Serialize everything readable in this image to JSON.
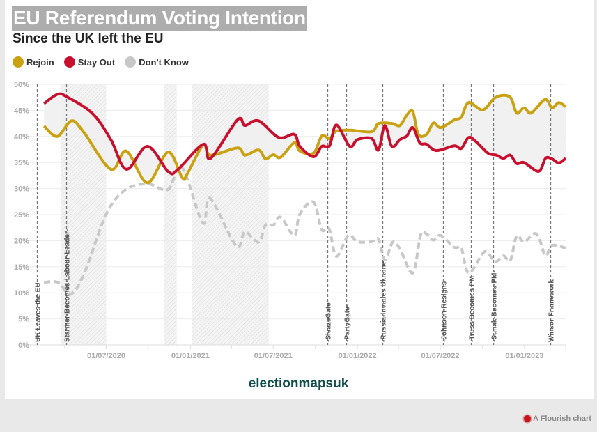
{
  "header": {
    "title": "EU Referendum Voting Intention",
    "subtitle": "Since the UK left the EU"
  },
  "legend": [
    {
      "label": "Rejoin",
      "color": "#c9a111"
    },
    {
      "label": "Stay Out",
      "color": "#c8102e"
    },
    {
      "label": "Don't Know",
      "color": "#c8c8c8"
    }
  ],
  "footer": {
    "credit": "electionmapsuk",
    "flourish": "A Flourish chart"
  },
  "chart_data": {
    "type": "line",
    "title": "EU Referendum Voting Intention",
    "subtitle": "Since the UK left the EU",
    "xlabel": "",
    "ylabel": "",
    "xlim": [
      "2020-01-30",
      "2023-04-01"
    ],
    "ylim": [
      0,
      50
    ],
    "y_ticks": [
      "0%",
      "5%",
      "10%",
      "15%",
      "20%",
      "25%",
      "30%",
      "35%",
      "40%",
      "45%",
      "50%"
    ],
    "x_ticks": [
      {
        "date": "2020-07-01",
        "label": "01/07/2020"
      },
      {
        "date": "2021-01-01",
        "label": "01/01/2021"
      },
      {
        "date": "2021-07-01",
        "label": "01/07/2021"
      },
      {
        "date": "2022-01-01",
        "label": "01/01/2022"
      },
      {
        "date": "2022-07-01",
        "label": "01/07/2022"
      },
      {
        "date": "2023-01-01",
        "label": "01/01/2023"
      }
    ],
    "x_minor_ticks": [
      "2020-04-01",
      "2020-10-01",
      "2021-04-01",
      "2021-10-01",
      "2022-04-01",
      "2022-10-01",
      "2023-04-01"
    ],
    "grid": true,
    "legend_position": "top-left",
    "shaded_periods": [
      [
        "2020-03-23",
        "2020-07-01"
      ],
      [
        "2020-11-05",
        "2020-12-02"
      ],
      [
        "2021-01-05",
        "2021-06-21"
      ]
    ],
    "events": [
      {
        "date": "2020-01-31",
        "label": "UK Leaves the EU"
      },
      {
        "date": "2020-04-04",
        "label": "Starmer-Becomes-Labour-Leader-"
      },
      {
        "date": "2021-10-28",
        "label": "-SleazeGate"
      },
      {
        "date": "2021-12-08",
        "label": "-PartyGate-"
      },
      {
        "date": "2022-02-24",
        "label": "-Russia-Invades Ukraine-"
      },
      {
        "date": "2022-07-07",
        "label": "-Johnson-Resigns"
      },
      {
        "date": "2022-09-06",
        "label": "-Truss Becomes PM"
      },
      {
        "date": "2022-10-25",
        "label": "-Sunak-Becomes-PM-"
      },
      {
        "date": "2023-02-27",
        "label": "Winsor Framework"
      }
    ],
    "series": [
      {
        "name": "Rejoin",
        "color": "#c9a111",
        "dashed": false,
        "points": [
          [
            "2020-02-16",
            42.0
          ],
          [
            "2020-03-16",
            40.0
          ],
          [
            "2020-04-16",
            43.0
          ],
          [
            "2020-05-13",
            40.8
          ],
          [
            "2020-07-11",
            33.7
          ],
          [
            "2020-08-14",
            37.2
          ],
          [
            "2020-09-29",
            31.1
          ],
          [
            "2020-11-13",
            37.0
          ],
          [
            "2020-12-14",
            32.1
          ],
          [
            "2020-12-25",
            32.8
          ],
          [
            "2021-01-29",
            38.4
          ],
          [
            "2021-02-14",
            36.4
          ],
          [
            "2021-04-14",
            37.8
          ],
          [
            "2021-04-30",
            36.4
          ],
          [
            "2021-05-30",
            37.4
          ],
          [
            "2021-06-14",
            35.7
          ],
          [
            "2021-07-01",
            36.5
          ],
          [
            "2021-07-17",
            36.0
          ],
          [
            "2021-08-16",
            38.8
          ],
          [
            "2021-08-28",
            37.2
          ],
          [
            "2021-09-27",
            36.8
          ],
          [
            "2021-10-15",
            40.1
          ],
          [
            "2021-11-01",
            39.6
          ],
          [
            "2021-11-16",
            41.0
          ],
          [
            "2021-12-16",
            41.2
          ],
          [
            "2022-02-01",
            40.9
          ],
          [
            "2022-02-16",
            42.5
          ],
          [
            "2022-03-17",
            42.5
          ],
          [
            "2022-04-04",
            42.1
          ],
          [
            "2022-04-19",
            44.1
          ],
          [
            "2022-05-02",
            44.8
          ],
          [
            "2022-05-14",
            40.4
          ],
          [
            "2022-06-01",
            40.4
          ],
          [
            "2022-06-16",
            42.6
          ],
          [
            "2022-07-02",
            41.7
          ],
          [
            "2022-08-01",
            43.2
          ],
          [
            "2022-08-16",
            43.7
          ],
          [
            "2022-09-01",
            46.5
          ],
          [
            "2022-10-02",
            45.1
          ],
          [
            "2022-10-30",
            47.5
          ],
          [
            "2022-11-30",
            47.6
          ],
          [
            "2022-12-15",
            44.5
          ],
          [
            "2022-12-31",
            45.5
          ],
          [
            "2023-01-16",
            44.5
          ],
          [
            "2023-02-15",
            47.1
          ],
          [
            "2023-03-02",
            45.5
          ],
          [
            "2023-03-17",
            46.5
          ],
          [
            "2023-04-01",
            45.7
          ]
        ]
      },
      {
        "name": "Stay Out",
        "color": "#c8102e",
        "dashed": false,
        "points": [
          [
            "2020-02-16",
            46.3
          ],
          [
            "2020-03-17",
            48.1
          ],
          [
            "2020-04-08",
            47.5
          ],
          [
            "2020-06-01",
            44.4
          ],
          [
            "2020-07-11",
            39.4
          ],
          [
            "2020-08-14",
            33.7
          ],
          [
            "2020-09-29",
            38.1
          ],
          [
            "2020-11-14",
            33.2
          ],
          [
            "2020-12-05",
            33.7
          ],
          [
            "2021-01-29",
            38.5
          ],
          [
            "2021-02-14",
            35.8
          ],
          [
            "2021-04-14",
            43.2
          ],
          [
            "2021-04-30",
            42.1
          ],
          [
            "2021-05-30",
            43.0
          ],
          [
            "2021-07-13",
            39.8
          ],
          [
            "2021-08-16",
            40.4
          ],
          [
            "2021-08-28",
            38.1
          ],
          [
            "2021-09-27",
            36.1
          ],
          [
            "2021-10-15",
            38.1
          ],
          [
            "2021-11-01",
            38.2
          ],
          [
            "2021-11-16",
            42.2
          ],
          [
            "2021-12-15",
            38.1
          ],
          [
            "2022-01-01",
            39.4
          ],
          [
            "2022-02-01",
            39.6
          ],
          [
            "2022-02-16",
            37.4
          ],
          [
            "2022-03-02",
            42.1
          ],
          [
            "2022-03-17",
            38.1
          ],
          [
            "2022-04-04",
            39.4
          ],
          [
            "2022-04-19",
            40.1
          ],
          [
            "2022-05-02",
            41.7
          ],
          [
            "2022-05-17",
            38.8
          ],
          [
            "2022-06-01",
            38.5
          ],
          [
            "2022-06-17",
            37.4
          ],
          [
            "2022-07-02",
            37.4
          ],
          [
            "2022-08-01",
            38.2
          ],
          [
            "2022-08-16",
            37.7
          ],
          [
            "2022-09-01",
            39.8
          ],
          [
            "2022-09-17",
            39.0
          ],
          [
            "2022-10-13",
            36.8
          ],
          [
            "2022-11-01",
            36.4
          ],
          [
            "2022-11-16",
            35.8
          ],
          [
            "2022-12-01",
            36.4
          ],
          [
            "2022-12-15",
            34.8
          ],
          [
            "2022-12-31",
            35.0
          ],
          [
            "2023-02-01",
            33.3
          ],
          [
            "2023-02-16",
            35.8
          ],
          [
            "2023-03-02",
            35.7
          ],
          [
            "2023-03-17",
            34.9
          ],
          [
            "2023-04-01",
            35.8
          ]
        ]
      },
      {
        "name": "Don't Know",
        "color": "#c8c8c8",
        "dashed": true,
        "points": [
          [
            "2020-02-16",
            12.0
          ],
          [
            "2020-03-17",
            12.0
          ],
          [
            "2020-04-16",
            9.8
          ],
          [
            "2020-05-17",
            14.4
          ],
          [
            "2020-07-01",
            25.1
          ],
          [
            "2020-08-11",
            29.7
          ],
          [
            "2020-09-29",
            30.9
          ],
          [
            "2020-11-13",
            29.8
          ],
          [
            "2020-12-13",
            34.1
          ],
          [
            "2021-01-28",
            23.4
          ],
          [
            "2021-02-13",
            28.1
          ],
          [
            "2021-04-11",
            19.0
          ],
          [
            "2021-04-30",
            21.7
          ],
          [
            "2021-05-30",
            19.7
          ],
          [
            "2021-06-14",
            23.0
          ],
          [
            "2021-07-01",
            23.0
          ],
          [
            "2021-07-17",
            24.5
          ],
          [
            "2021-08-16",
            21.0
          ],
          [
            "2021-08-28",
            25.1
          ],
          [
            "2021-09-27",
            27.4
          ],
          [
            "2021-10-15",
            22.1
          ],
          [
            "2021-10-31",
            22.3
          ],
          [
            "2021-11-16",
            17.0
          ],
          [
            "2021-12-12",
            21.0
          ],
          [
            "2022-01-01",
            19.8
          ],
          [
            "2022-02-01",
            19.8
          ],
          [
            "2022-02-16",
            20.3
          ],
          [
            "2022-03-02",
            16.3
          ],
          [
            "2022-03-19",
            19.7
          ],
          [
            "2022-04-04",
            18.4
          ],
          [
            "2022-05-02",
            13.8
          ],
          [
            "2022-05-19",
            21.1
          ],
          [
            "2022-06-01",
            21.3
          ],
          [
            "2022-06-16",
            20.1
          ],
          [
            "2022-07-02",
            21.0
          ],
          [
            "2022-08-01",
            18.7
          ],
          [
            "2022-08-16",
            18.6
          ],
          [
            "2022-09-01",
            13.8
          ],
          [
            "2022-10-02",
            17.6
          ],
          [
            "2022-10-13",
            17.6
          ],
          [
            "2022-10-30",
            16.0
          ],
          [
            "2022-11-16",
            17.1
          ],
          [
            "2022-12-01",
            16.2
          ],
          [
            "2022-12-15",
            20.9
          ],
          [
            "2022-12-31",
            19.7
          ],
          [
            "2023-01-20",
            21.3
          ],
          [
            "2023-02-01",
            20.7
          ],
          [
            "2023-02-16",
            17.1
          ],
          [
            "2023-03-02",
            19.1
          ],
          [
            "2023-04-01",
            18.6
          ]
        ]
      }
    ]
  }
}
